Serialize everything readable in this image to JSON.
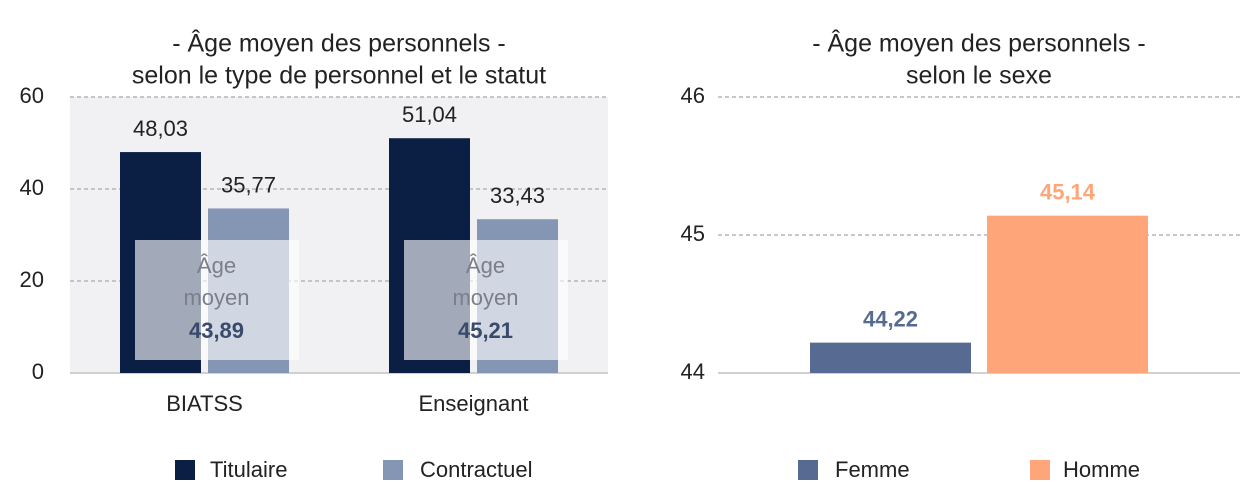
{
  "chart_data": [
    {
      "type": "bar",
      "title": [
        "- Âge moyen des personnels -",
        "selon le type de personnel et le statut"
      ],
      "categories": [
        "BIATSS",
        "Enseignant"
      ],
      "series": [
        {
          "name": "Titulaire",
          "color": "#0b1f45",
          "values": [
            48.03,
            51.04
          ],
          "value_labels": [
            "48,03",
            "51,04"
          ]
        },
        {
          "name": "Contractuel",
          "color": "#8596b5",
          "values": [
            35.77,
            33.43
          ],
          "value_labels": [
            "35,77",
            "33,43"
          ]
        }
      ],
      "annotations": [
        {
          "text": "Âge moyen",
          "value": 43.89,
          "value_label": "43,89"
        },
        {
          "text": "Âge moyen",
          "value": 45.21,
          "value_label": "45,21"
        }
      ],
      "ylim": [
        0,
        60
      ],
      "yticks": [
        0,
        20,
        40,
        60
      ],
      "grid": true
    },
    {
      "type": "bar",
      "title": [
        "- Âge moyen des personnels -",
        "selon le sexe"
      ],
      "categories": [
        null
      ],
      "series": [
        {
          "name": "Femme",
          "color": "#566a92",
          "values": [
            44.22
          ],
          "value_labels": [
            "44,22"
          ]
        },
        {
          "name": "Homme",
          "color": "#ffa57a",
          "values": [
            45.14
          ],
          "value_labels": [
            "45,14"
          ]
        }
      ],
      "ylim": [
        44,
        46
      ],
      "yticks": [
        44,
        45,
        46
      ],
      "grid": true
    }
  ]
}
